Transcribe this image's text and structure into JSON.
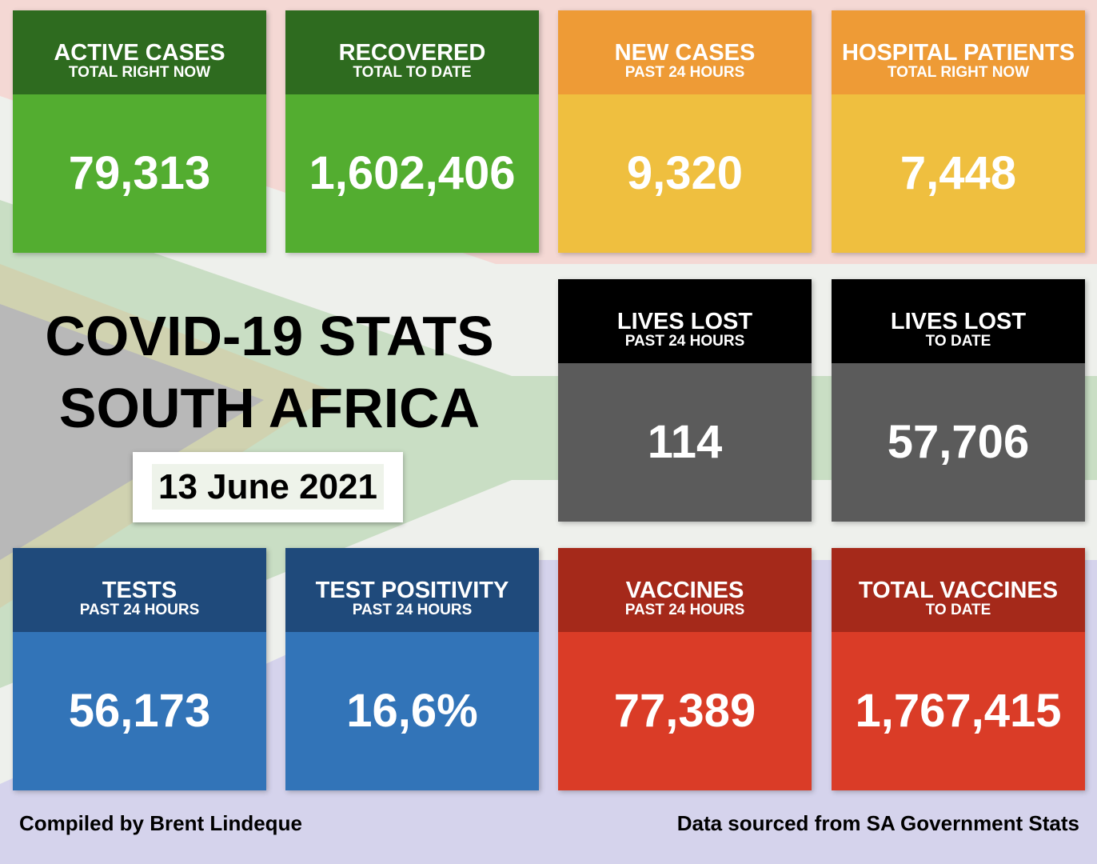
{
  "title": [
    "COVID-19 STATS",
    "SOUTH AFRICA"
  ],
  "date": "13 June 2021",
  "tiles": [
    {
      "title": "ACTIVE CASES",
      "subtitle": "TOTAL RIGHT NOW",
      "value": "79,313"
    },
    {
      "title": "RECOVERED",
      "subtitle": "TOTAL TO DATE",
      "value": "1,602,406"
    },
    {
      "title": "NEW CASES",
      "subtitle": "PAST 24 HOURS",
      "value": "9,320"
    },
    {
      "title": "HOSPITAL PATIENTS",
      "subtitle": "TOTAL RIGHT NOW",
      "value": "7,448"
    },
    {
      "title": "LIVES LOST",
      "subtitle": "PAST 24 HOURS",
      "value": "114"
    },
    {
      "title": "LIVES LOST",
      "subtitle": "TO DATE",
      "value": "57,706"
    },
    {
      "title": "TESTS",
      "subtitle": "PAST 24 HOURS",
      "value": "56,173"
    },
    {
      "title": "TEST POSITIVITY",
      "subtitle": "PAST 24 HOURS",
      "value": "16,6%"
    },
    {
      "title": "VACCINES",
      "subtitle": "PAST 24 HOURS",
      "value": "77,389"
    },
    {
      "title": "TOTAL VACCINES",
      "subtitle": "TO DATE",
      "value": "1,767,415"
    }
  ],
  "footer": {
    "left": "Compiled by Brent Lindeque",
    "right": "Data sourced from SA Government Stats"
  }
}
